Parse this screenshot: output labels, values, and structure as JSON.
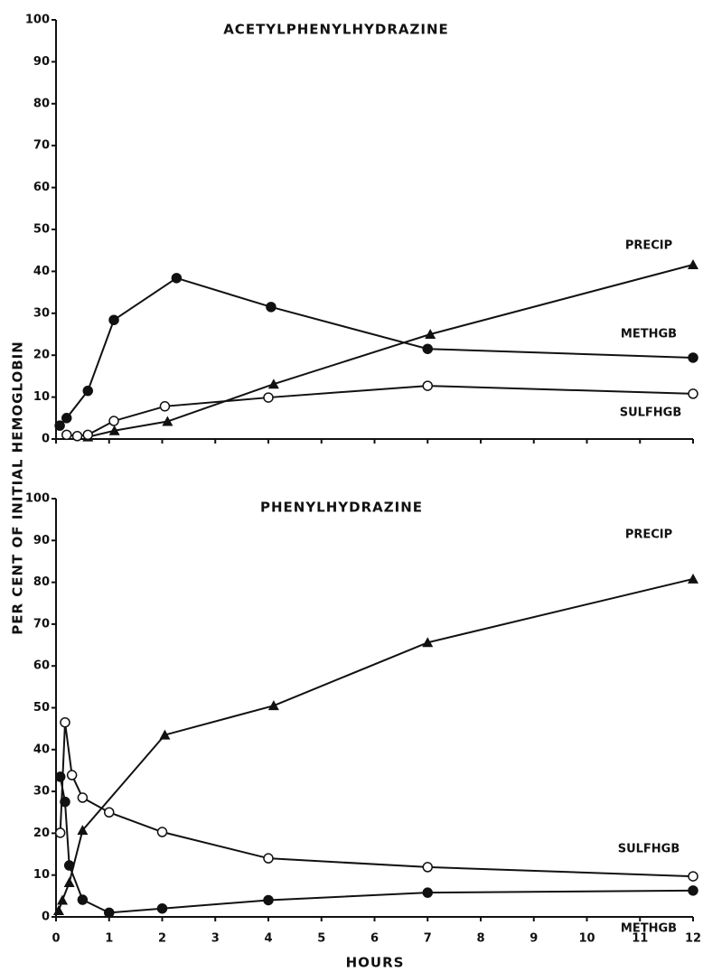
{
  "chart_data": [
    {
      "type": "line",
      "title": "ACETYLPHENYLHYDRAZINE",
      "ylabel": "PER CENT OF INITIAL HEMOGLOBIN",
      "xlim": [
        0,
        12
      ],
      "xticks": [
        0,
        1,
        2,
        3,
        4,
        5,
        6,
        7,
        8,
        9,
        10,
        11,
        12
      ],
      "ylim": [
        0,
        100
      ],
      "yticks": [
        0,
        10,
        20,
        30,
        40,
        50,
        60,
        70,
        80,
        90,
        100
      ],
      "series": [
        {
          "name": "PRECIP",
          "marker": "triangle",
          "color": "#111111",
          "x": [
            0.6,
            1.1,
            2.1,
            4.1,
            7.05,
            12
          ],
          "values": [
            0.5,
            2,
            4.2,
            13.1,
            25,
            41.6
          ]
        },
        {
          "name": "METHGB",
          "marker": "filled-circle",
          "color": "#111111",
          "x": [
            0.07,
            0.2,
            0.6,
            1.09,
            2.27,
            4.05,
            7,
            12
          ],
          "values": [
            3.2,
            5,
            11.5,
            28.4,
            38.4,
            31.5,
            21.5,
            19.4
          ]
        },
        {
          "name": "SULFHGB",
          "marker": "open-circle",
          "color": "#111111",
          "x": [
            0.2,
            0.4,
            0.6,
            1.09,
            2.05,
            4,
            7,
            12
          ],
          "values": [
            1,
            0.7,
            1,
            4.3,
            7.8,
            9.9,
            12.7,
            10.8
          ]
        }
      ]
    },
    {
      "type": "line",
      "title": "PHENYLHYDRAZINE",
      "xlabel": "HOURS",
      "xlim": [
        0,
        12
      ],
      "xticks": [
        0,
        1,
        2,
        3,
        4,
        5,
        6,
        7,
        8,
        9,
        10,
        11,
        12
      ],
      "ylim": [
        0,
        100
      ],
      "yticks": [
        0,
        10,
        20,
        30,
        40,
        50,
        60,
        70,
        80,
        90,
        100
      ],
      "series": [
        {
          "name": "PRECIP",
          "marker": "triangle",
          "color": "#111111",
          "x": [
            0.05,
            0.12,
            0.25,
            0.5,
            2.05,
            4.1,
            7,
            12
          ],
          "values": [
            1.5,
            4,
            8.2,
            20.7,
            43.5,
            50.5,
            65.6,
            80.8
          ]
        },
        {
          "name": "SULFHGB",
          "marker": "open-circle",
          "color": "#111111",
          "x": [
            0.08,
            0.17,
            0.3,
            0.5,
            1,
            2,
            4,
            7,
            12
          ],
          "values": [
            20.1,
            46.5,
            33.9,
            28.5,
            25,
            20.3,
            14,
            11.9,
            9.7
          ]
        },
        {
          "name": "METHGB",
          "marker": "filled-circle",
          "color": "#111111",
          "x": [
            0.08,
            0.17,
            0.25,
            0.5,
            1,
            2,
            4,
            7,
            12
          ],
          "values": [
            33.5,
            27.5,
            12.3,
            4.1,
            1,
            2,
            4,
            5.8,
            6.3
          ]
        }
      ]
    }
  ]
}
